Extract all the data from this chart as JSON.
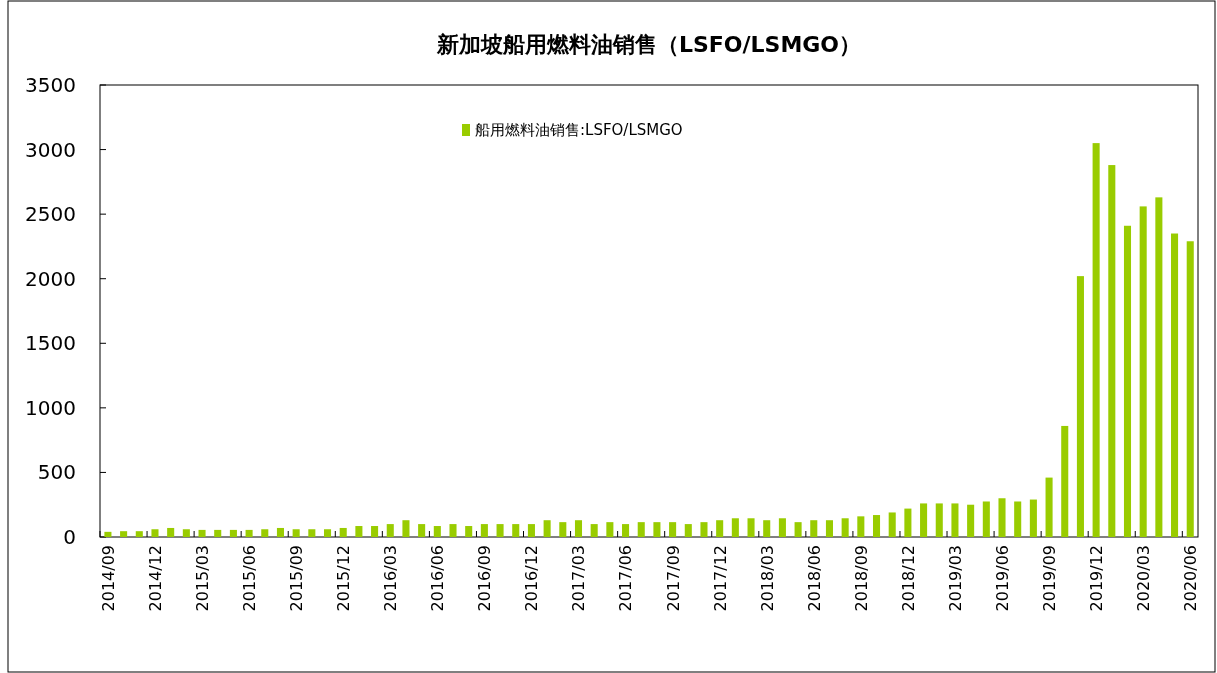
{
  "chart_data": {
    "type": "bar",
    "title": "新加坡船用燃料油销售（LSFO/LSMGO）",
    "categories": [
      "2014/09",
      null,
      null,
      "2014/12",
      null,
      null,
      "2015/03",
      null,
      null,
      "2015/06",
      null,
      null,
      "2015/09",
      null,
      null,
      "2015/12",
      null,
      null,
      "2016/03",
      null,
      null,
      "2016/06",
      null,
      null,
      "2016/09",
      null,
      null,
      "2016/12",
      null,
      null,
      "2017/03",
      null,
      null,
      "2017/06",
      null,
      null,
      "2017/09",
      null,
      null,
      "2017/12",
      null,
      null,
      "2018/03",
      null,
      null,
      "2018/06",
      null,
      null,
      "2018/09",
      null,
      null,
      "2018/12",
      null,
      null,
      "2019/03",
      null,
      null,
      "2019/06",
      null,
      null,
      "2019/09",
      null,
      null,
      "2019/12",
      null,
      null,
      "2020/03",
      null,
      null,
      "2020/06"
    ],
    "series": [
      {
        "name": "船用燃料油销售:LSFO/LSMGO",
        "color": "#99cc00",
        "values": [
          40,
          45,
          45,
          60,
          70,
          60,
          55,
          55,
          55,
          55,
          60,
          70,
          60,
          60,
          60,
          70,
          85,
          85,
          100,
          130,
          100,
          85,
          100,
          85,
          100,
          100,
          100,
          100,
          130,
          115,
          130,
          100,
          115,
          100,
          115,
          115,
          115,
          100,
          115,
          130,
          145,
          145,
          130,
          145,
          115,
          130,
          130,
          145,
          160,
          170,
          190,
          220,
          260,
          260,
          260,
          250,
          275,
          300,
          275,
          290,
          460,
          860,
          2020,
          3050,
          2880,
          2410,
          2560,
          2630,
          2350,
          2290
        ]
      }
    ],
    "ylim": [
      0,
      3500
    ],
    "yticks": [
      0,
      500,
      1000,
      1500,
      2000,
      2500,
      3000,
      3500
    ],
    "grid": false,
    "legend": "top"
  }
}
